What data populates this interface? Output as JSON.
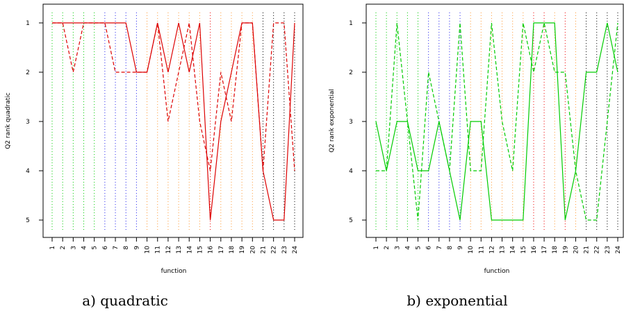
{
  "figure": {
    "captions": [
      "a) quadratic",
      "b) exponential"
    ]
  },
  "chart_data": [
    {
      "type": "line",
      "caption": "a) quadratic",
      "xlabel": "function",
      "ylabel": "Q2 rank quadratic",
      "x": [
        1,
        2,
        3,
        4,
        5,
        6,
        7,
        8,
        9,
        10,
        11,
        12,
        13,
        14,
        15,
        16,
        17,
        18,
        19,
        20,
        21,
        22,
        23,
        24
      ],
      "xlim": [
        1,
        24
      ],
      "ylim": [
        1,
        5
      ],
      "y_reversed": true,
      "y_ticks": [
        1,
        2,
        3,
        4,
        5
      ],
      "vertical_guides": {
        "style": "dotted",
        "colors": [
          "#00cc00",
          "#00cc00",
          "#00cc00",
          "#00cc00",
          "#00cc00",
          "#2222ee",
          "#2222ee",
          "#2222ee",
          "#2222ee",
          "#ff9933",
          "#ff9933",
          "#ff9933",
          "#ff9933",
          "#ff9933",
          "#ff9933",
          "#ee0000",
          "#ff9933",
          "#ff9933",
          "#ff9933",
          "#ff9933",
          "#000000",
          "#000000",
          "#000000",
          "#000000"
        ]
      },
      "series": [
        {
          "style": "solid",
          "color": "#dd0000",
          "values": [
            1,
            1,
            1,
            1,
            1,
            1,
            1,
            1,
            2,
            2,
            1,
            2,
            1,
            2,
            1,
            5,
            3,
            2,
            1,
            1,
            4,
            5,
            5,
            1
          ]
        },
        {
          "style": "dashed",
          "color": "#dd0000",
          "values": [
            1,
            1,
            2,
            1,
            1,
            1,
            2,
            2,
            2,
            2,
            1,
            3,
            2,
            1,
            3,
            4,
            2,
            3,
            1,
            1,
            4,
            1,
            1,
            4
          ]
        }
      ]
    },
    {
      "type": "line",
      "caption": "b) exponential",
      "xlabel": "function",
      "ylabel": "Q2 rank exponential",
      "x": [
        1,
        2,
        3,
        4,
        5,
        6,
        7,
        8,
        9,
        10,
        11,
        12,
        13,
        14,
        15,
        16,
        17,
        18,
        19,
        20,
        21,
        22,
        23,
        24
      ],
      "xlim": [
        1,
        24
      ],
      "ylim": [
        1,
        5
      ],
      "y_reversed": true,
      "y_ticks": [
        1,
        2,
        3,
        4,
        5
      ],
      "vertical_guides": {
        "style": "dotted",
        "colors": [
          "#00cc00",
          "#00cc00",
          "#00cc00",
          "#00cc00",
          "#00cc00",
          "#2222ee",
          "#2222ee",
          "#2222ee",
          "#2222ee",
          "#ff9933",
          "#ff9933",
          "#ff9933",
          "#ff9933",
          "#ff9933",
          "#ff9933",
          "#ee0000",
          "#ee0000",
          "#ff9933",
          "#ee0000",
          "#ff9933",
          "#000000",
          "#000000",
          "#000000",
          "#000000"
        ]
      },
      "series": [
        {
          "style": "solid",
          "color": "#00cc00",
          "values": [
            3,
            4,
            3,
            3,
            4,
            4,
            3,
            4,
            5,
            3,
            3,
            5,
            5,
            5,
            5,
            1,
            1,
            1,
            5,
            4,
            2,
            2,
            1,
            2
          ]
        },
        {
          "style": "dashed",
          "color": "#00cc00",
          "values": [
            4,
            4,
            1,
            3,
            5,
            2,
            3,
            4,
            1,
            4,
            4,
            1,
            3,
            4,
            1,
            2,
            1,
            2,
            2,
            4,
            5,
            5,
            3,
            1
          ]
        }
      ]
    }
  ]
}
